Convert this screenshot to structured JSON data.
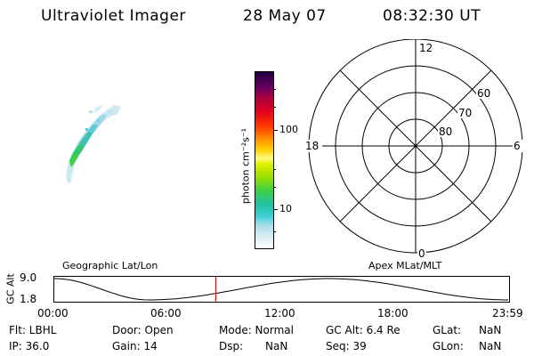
{
  "header": {
    "instrument": "Ultraviolet Imager",
    "date": "28 May 07",
    "time": "08:32:30 UT"
  },
  "colorbar": {
    "label": "photon cm⁻²s⁻¹",
    "tick_labels": [
      "100",
      "10"
    ]
  },
  "polar_plot": {
    "mlt_labels": {
      "top": "12",
      "left": "18",
      "right": "6",
      "bottom": "0"
    },
    "lat_labels": [
      "60",
      "70",
      "80"
    ]
  },
  "timeseries": {
    "left_title": "Geographic Lat/Lon",
    "right_title": "Apex MLat/MLT",
    "ylabel": "GC Alt",
    "y_ticks": [
      "9.0",
      "1.8"
    ],
    "x_ticks": [
      "00:00",
      "06:00",
      "12:00",
      "18:00",
      "23:59"
    ],
    "marker_time_hours": 8.54,
    "line_color": "#000000",
    "marker_color": "#cc0000"
  },
  "info": {
    "filter": "Flt: LBHL",
    "ip": "IP: 36.0",
    "door": "Door: Open",
    "gain": "Gain: 14",
    "mode": "Mode: Normal",
    "dsp": "Dsp:",
    "dsp_value": "NaN",
    "gc_alt": "GC Alt: 6.4 Re",
    "seq": "Seq: 39",
    "glat": "GLat:",
    "glat_value": "NaN",
    "glon": "GLon:",
    "glon_value": "NaN"
  }
}
